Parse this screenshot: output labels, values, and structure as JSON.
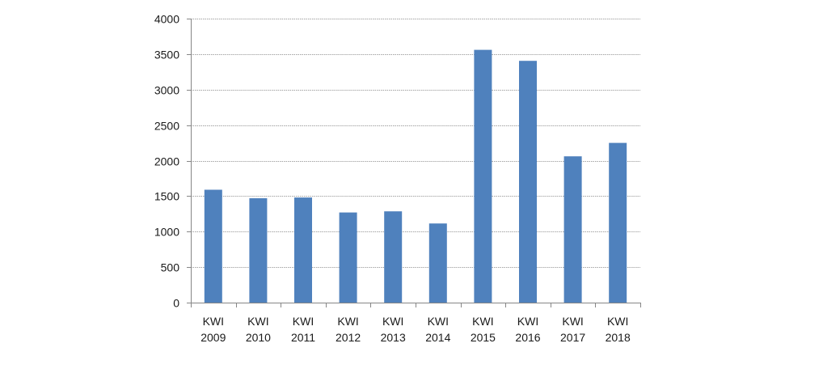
{
  "chart_data": {
    "type": "bar",
    "categories": [
      [
        "KWI",
        "2009"
      ],
      [
        "KWI",
        "2010"
      ],
      [
        "KWI",
        "2011"
      ],
      [
        "KWI",
        "2012"
      ],
      [
        "KWI",
        "2013"
      ],
      [
        "KWI",
        "2014"
      ],
      [
        "KWI",
        "2015"
      ],
      [
        "KWI",
        "2016"
      ],
      [
        "KWI",
        "2017"
      ],
      [
        "KWI",
        "2018"
      ]
    ],
    "values": [
      1590,
      1470,
      1480,
      1270,
      1285,
      1115,
      3560,
      3405,
      2060,
      2250
    ],
    "title": "",
    "xlabel": "",
    "ylabel": "",
    "ylim": [
      0,
      4000
    ],
    "yticks": [
      "0",
      "500",
      "1000",
      "1500",
      "2000",
      "2500",
      "3000",
      "3500",
      "4000"
    ],
    "grid": true,
    "legend": "none",
    "colors": {
      "bar": "#4f81bd",
      "grid": "#a6a6a6",
      "axis": "#868686"
    }
  }
}
